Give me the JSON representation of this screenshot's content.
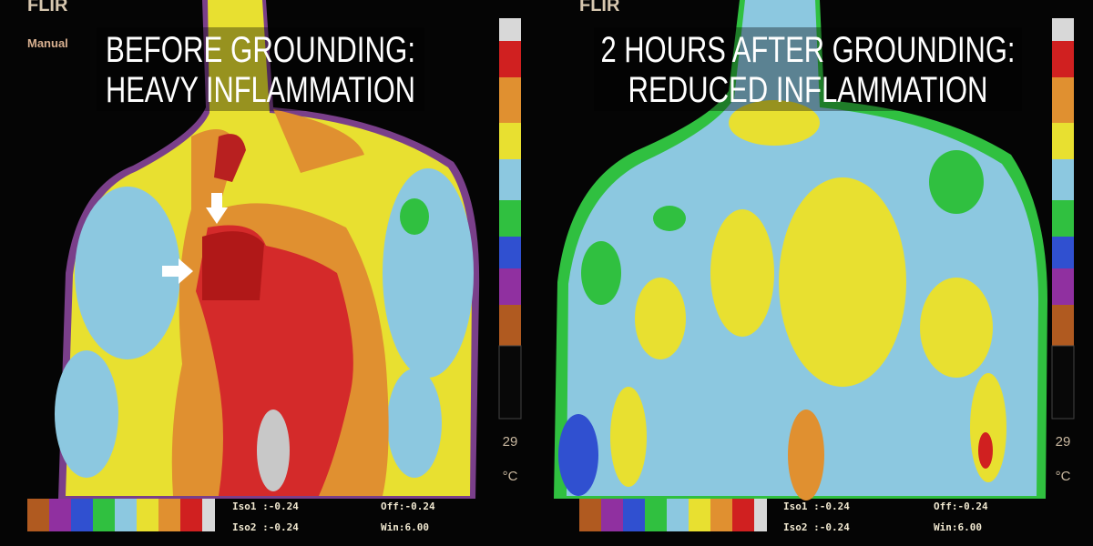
{
  "panels": [
    {
      "logo": "FLIR",
      "mode": "Manual",
      "title": [
        "BEFORE GROUNDING:",
        "HEAVY INFLAMMATION"
      ],
      "scale_value": "29",
      "scale_unit": "°C",
      "iso1": "Iso1 :-0.24",
      "iso2": "Iso2 :-0.24",
      "offset": "Off:-0.24",
      "window": "Win:6.00"
    },
    {
      "logo": "FLIR",
      "title": [
        "2 HOURS AFTER GROUNDING:",
        "REDUCED INFLAMMATION"
      ],
      "scale_value": "29",
      "scale_unit": "°C",
      "iso1": "Iso1 :-0.24",
      "iso2": "Iso2 :-0.24",
      "offset": "Off:-0.24",
      "window": "Win:6.00"
    }
  ]
}
